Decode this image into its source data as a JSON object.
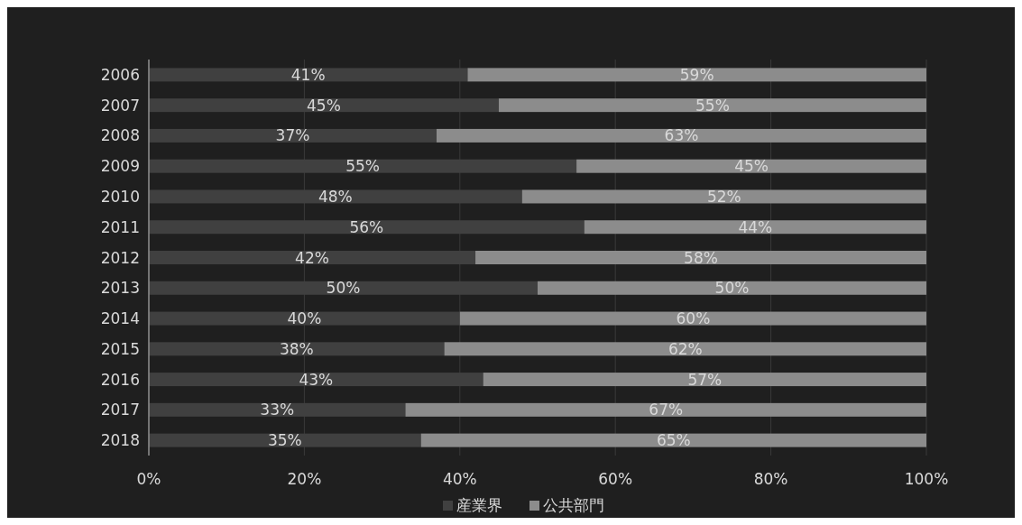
{
  "chart_data": {
    "type": "bar",
    "orientation": "horizontal",
    "stacked": true,
    "categories": [
      "2006",
      "2007",
      "2008",
      "2009",
      "2010",
      "2011",
      "2012",
      "2013",
      "2014",
      "2015",
      "2016",
      "2017",
      "2018"
    ],
    "series": [
      {
        "name": "産業界",
        "color": "#404040",
        "values": [
          41,
          45,
          37,
          55,
          48,
          56,
          42,
          50,
          40,
          38,
          43,
          33,
          35
        ],
        "value_labels": [
          "41%",
          "45%",
          "37%",
          "55%",
          "48%",
          "56%",
          "42%",
          "50%",
          "40%",
          "38%",
          "43%",
          "33%",
          "35%"
        ]
      },
      {
        "name": "公共部門",
        "color": "#8c8c8c",
        "values": [
          59,
          55,
          63,
          45,
          52,
          44,
          58,
          50,
          60,
          62,
          57,
          67,
          65
        ],
        "value_labels": [
          "59%",
          "55%",
          "63%",
          "45%",
          "52%",
          "44%",
          "58%",
          "50%",
          "60%",
          "62%",
          "57%",
          "67%",
          "65%"
        ]
      }
    ],
    "xlim": [
      0,
      100
    ],
    "xticks": [
      {
        "value": 0,
        "label": "0%"
      },
      {
        "value": 20,
        "label": "20%"
      },
      {
        "value": 40,
        "label": "40%"
      },
      {
        "value": 60,
        "label": "60%"
      },
      {
        "value": 80,
        "label": "80%"
      },
      {
        "value": 100,
        "label": "100%"
      }
    ],
    "grid": "x",
    "legend": "bottom"
  }
}
